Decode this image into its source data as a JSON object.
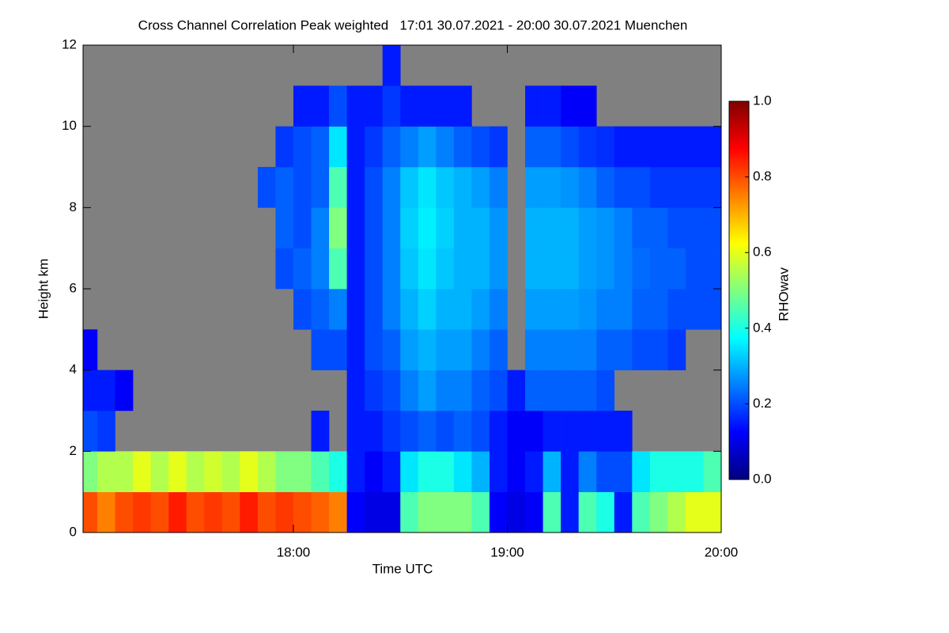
{
  "chart_data": {
    "type": "heatmap",
    "title": "Cross Channel Correlation Peak weighted   17:01 30.07.2021 - 20:00 30.07.2021 Muenchen",
    "x_label": "Time UTC",
    "y_label": "Height km",
    "colorbar_label": "RHOwav",
    "background_color": "#808080",
    "colormap": [
      "#00007f",
      "#0000ff",
      "#0080ff",
      "#00ffff",
      "#80ff80",
      "#ffff00",
      "#ff8000",
      "#ff0000",
      "#7f0000"
    ],
    "clim": [
      0,
      1
    ],
    "cticks": [
      {
        "value": 0,
        "label": "0.0"
      },
      {
        "value": 0.2,
        "label": "0.2"
      },
      {
        "value": 0.4,
        "label": "0.4"
      },
      {
        "value": 0.6,
        "label": "0.6"
      },
      {
        "value": 0.8,
        "label": "0.8"
      },
      {
        "value": 1,
        "label": "1.0"
      }
    ],
    "xlim": [
      17.0167,
      20.0
    ],
    "xticks": [
      {
        "value": 18,
        "label": "18:00"
      },
      {
        "value": 19,
        "label": "19:00"
      },
      {
        "value": 20,
        "label": "20:00"
      }
    ],
    "ylim": [
      0,
      12
    ],
    "yticks": [
      0,
      2,
      4,
      6,
      8,
      10,
      12
    ],
    "x_edges": [
      17.0167,
      17.0833,
      17.1667,
      17.25,
      17.3333,
      17.4167,
      17.5,
      17.5833,
      17.6667,
      17.75,
      17.8333,
      17.9167,
      18.0,
      18.0833,
      18.1667,
      18.25,
      18.3333,
      18.4167,
      18.5,
      18.5833,
      18.6667,
      18.75,
      18.8333,
      18.9167,
      19.0,
      19.0833,
      19.1667,
      19.25,
      19.3333,
      19.4167,
      19.5,
      19.5833,
      19.6667,
      19.75,
      19.8333,
      19.9167,
      20.0
    ],
    "y_edges": [
      0,
      1,
      2,
      3,
      4,
      5,
      6,
      7,
      8,
      9,
      10,
      11,
      12
    ],
    "values": [
      [
        0.8,
        0.75,
        0.8,
        0.82,
        0.8,
        0.85,
        0.8,
        0.82,
        0.8,
        0.85,
        0.8,
        0.82,
        0.8,
        0.78,
        0.75,
        0.12,
        0.1,
        0.1,
        0.45,
        0.5,
        0.5,
        0.5,
        0.45,
        0.12,
        0.1,
        0.12,
        0.45,
        0.15,
        0.45,
        0.4,
        0.15,
        0.45,
        0.5,
        0.55,
        0.6,
        0.6
      ],
      [
        0.5,
        0.55,
        0.55,
        0.6,
        0.55,
        0.6,
        0.55,
        0.58,
        0.55,
        0.6,
        0.55,
        0.5,
        0.5,
        0.45,
        0.4,
        0.15,
        0.12,
        0.15,
        0.35,
        0.4,
        0.4,
        0.35,
        0.3,
        0.15,
        0.12,
        0.15,
        0.3,
        0.15,
        0.25,
        0.2,
        0.2,
        0.35,
        0.4,
        0.4,
        0.4,
        0.45
      ],
      [
        0.2,
        0.18,
        null,
        null,
        null,
        null,
        null,
        null,
        null,
        null,
        null,
        null,
        null,
        0.15,
        null,
        0.15,
        0.15,
        0.18,
        0.2,
        0.22,
        0.2,
        0.22,
        0.2,
        0.15,
        0.12,
        0.12,
        0.15,
        0.15,
        0.15,
        0.15,
        0.15,
        null,
        null,
        null,
        null,
        null
      ],
      [
        0.15,
        0.15,
        0.12,
        null,
        null,
        null,
        null,
        null,
        null,
        null,
        null,
        null,
        null,
        null,
        null,
        0.15,
        0.18,
        0.2,
        0.25,
        0.28,
        0.25,
        0.25,
        0.22,
        0.2,
        0.15,
        0.22,
        0.22,
        0.22,
        0.22,
        0.2,
        null,
        null,
        null,
        null,
        null,
        null
      ],
      [
        0.12,
        null,
        null,
        null,
        null,
        null,
        null,
        null,
        null,
        null,
        null,
        null,
        null,
        0.2,
        0.2,
        0.15,
        0.2,
        0.22,
        0.28,
        0.3,
        0.28,
        0.28,
        0.25,
        0.22,
        null,
        0.25,
        0.25,
        0.25,
        0.25,
        0.22,
        0.22,
        0.2,
        0.2,
        0.18,
        null,
        null
      ],
      [
        null,
        null,
        null,
        null,
        null,
        null,
        null,
        null,
        null,
        null,
        null,
        null,
        0.2,
        0.22,
        0.25,
        0.15,
        0.2,
        0.25,
        0.3,
        0.33,
        0.3,
        0.3,
        0.28,
        0.25,
        null,
        0.28,
        0.28,
        0.28,
        0.27,
        0.25,
        0.25,
        0.22,
        0.22,
        0.2,
        0.2,
        0.2
      ],
      [
        null,
        null,
        null,
        null,
        null,
        null,
        null,
        null,
        null,
        null,
        null,
        0.2,
        0.22,
        0.25,
        0.45,
        0.15,
        0.2,
        0.25,
        0.32,
        0.35,
        0.32,
        0.3,
        0.3,
        0.27,
        null,
        0.3,
        0.3,
        0.3,
        0.28,
        0.27,
        0.25,
        0.23,
        0.22,
        0.22,
        0.2,
        0.2
      ],
      [
        null,
        null,
        null,
        null,
        null,
        null,
        null,
        null,
        null,
        null,
        null,
        0.22,
        0.2,
        0.25,
        0.5,
        0.15,
        0.2,
        0.25,
        0.33,
        0.36,
        0.33,
        0.3,
        0.3,
        0.27,
        null,
        0.3,
        0.3,
        0.3,
        0.28,
        0.27,
        0.25,
        0.22,
        0.22,
        0.2,
        0.2,
        0.2
      ],
      [
        null,
        null,
        null,
        null,
        null,
        null,
        null,
        null,
        null,
        null,
        0.2,
        0.22,
        0.2,
        0.22,
        0.45,
        0.15,
        0.2,
        0.25,
        0.32,
        0.35,
        0.32,
        0.3,
        0.28,
        0.25,
        null,
        0.28,
        0.28,
        0.27,
        0.25,
        0.22,
        0.2,
        0.2,
        0.18,
        0.18,
        0.18,
        0.18
      ],
      [
        null,
        null,
        null,
        null,
        null,
        null,
        null,
        null,
        null,
        null,
        null,
        0.18,
        0.2,
        0.22,
        0.35,
        0.15,
        0.18,
        0.22,
        0.25,
        0.28,
        0.25,
        0.22,
        0.2,
        0.18,
        null,
        0.22,
        0.22,
        0.2,
        0.18,
        0.17,
        0.15,
        0.15,
        0.15,
        0.15,
        0.15,
        0.15
      ],
      [
        null,
        null,
        null,
        null,
        null,
        null,
        null,
        null,
        null,
        null,
        null,
        null,
        0.15,
        0.15,
        0.2,
        0.15,
        0.15,
        0.18,
        0.15,
        0.15,
        0.15,
        0.15,
        null,
        null,
        null,
        0.15,
        0.15,
        0.12,
        0.12,
        null,
        null,
        null,
        null,
        null,
        null,
        null
      ],
      [
        null,
        null,
        null,
        null,
        null,
        null,
        null,
        null,
        null,
        null,
        null,
        null,
        null,
        null,
        null,
        null,
        null,
        0.15,
        null,
        null,
        null,
        null,
        null,
        null,
        null,
        null,
        null,
        null,
        null,
        null,
        null,
        null,
        null,
        null,
        null,
        null
      ]
    ]
  }
}
